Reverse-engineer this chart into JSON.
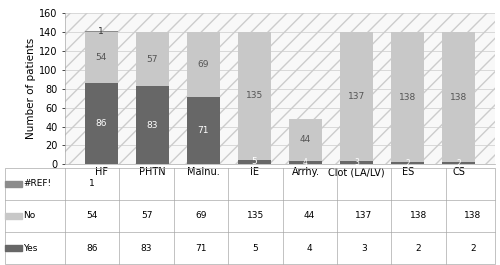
{
  "categories": [
    "HF",
    "PHTN",
    "Malnu.",
    "IE",
    "Arrhy.",
    "Clot (LA/LV)",
    "ES",
    "CS"
  ],
  "yes_values": [
    86,
    83,
    71,
    5,
    4,
    3,
    2,
    2
  ],
  "no_values": [
    54,
    57,
    69,
    135,
    44,
    137,
    138,
    138
  ],
  "ref_values": [
    1,
    0,
    0,
    0,
    0,
    0,
    0,
    0
  ],
  "yes_color": "#676767",
  "no_color": "#c8c8c8",
  "ref_color": "#8c8c8c",
  "ylabel": "Number of patients",
  "ylim": [
    0,
    160
  ],
  "yticks": [
    0,
    20,
    40,
    60,
    80,
    100,
    120,
    140,
    160
  ],
  "table_ref_row": [
    "1",
    "",
    "",
    "",
    "",
    "",
    "",
    ""
  ],
  "table_no_row": [
    "54",
    "57",
    "69",
    "135",
    "44",
    "137",
    "138",
    "138"
  ],
  "table_yes_row": [
    "86",
    "83",
    "71",
    "5",
    "4",
    "3",
    "2",
    "2"
  ],
  "legend_labels": [
    "#REF!",
    "No",
    "Yes"
  ],
  "grid_color": "#cccccc",
  "hatch_pattern": "//",
  "bg_color": "#f5f5f5"
}
